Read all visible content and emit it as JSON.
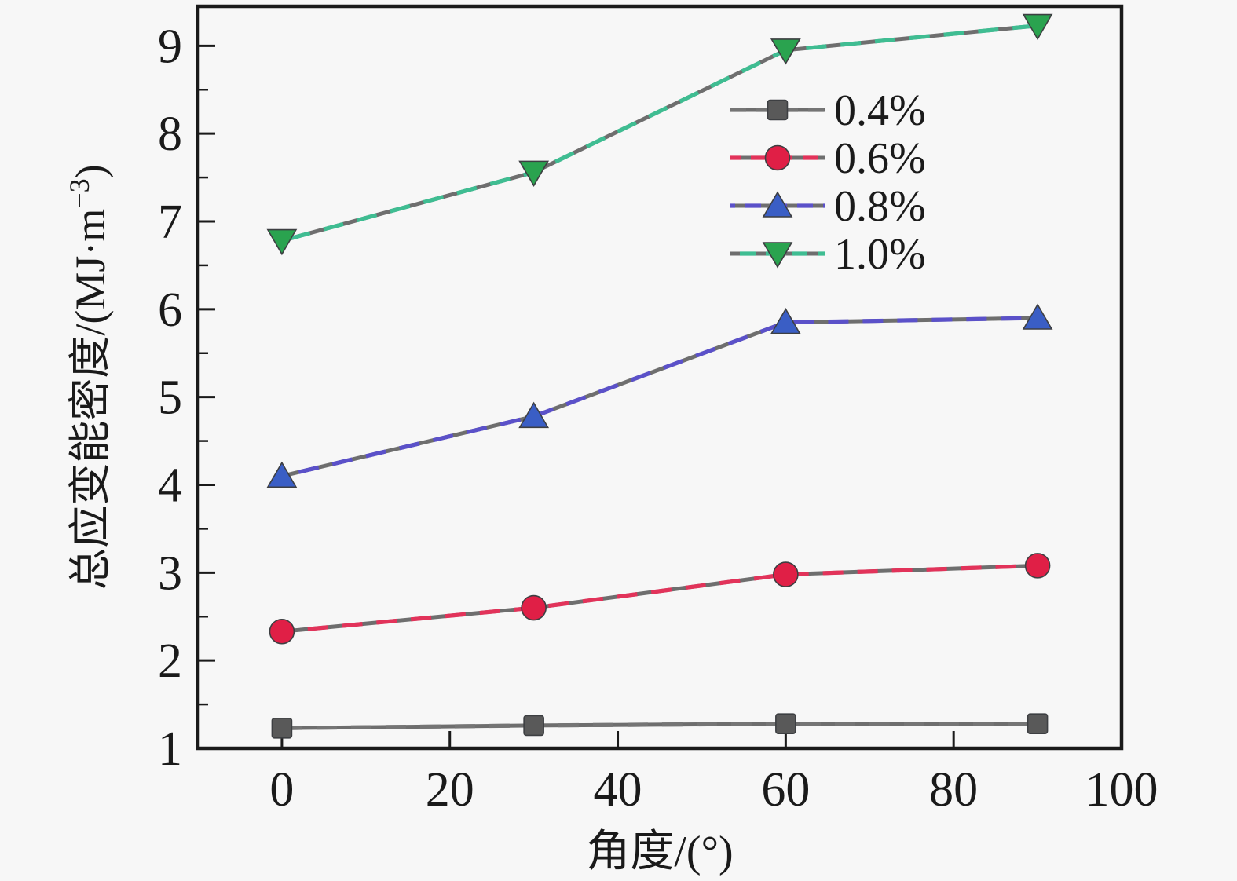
{
  "figure": {
    "background": "#f7f7f7",
    "axis_color": "#1a1a1a",
    "line_shadow_color": "#6e6e6e"
  },
  "chart_data": {
    "type": "line",
    "title": "",
    "xlabel": "角度/(°)",
    "ylabel_prefix": "总应变能密度/(MJ·m",
    "ylabel_sup": "−3",
    "ylabel_suffix": ")",
    "x": [
      0,
      30,
      60,
      90
    ],
    "series": [
      {
        "name": "0.4%",
        "values": [
          1.23,
          1.26,
          1.28,
          1.28
        ],
        "line_color": "#757575",
        "marker_color": "#595959",
        "marker": "square"
      },
      {
        "name": "0.6%",
        "values": [
          2.33,
          2.6,
          2.98,
          3.08
        ],
        "line_color": "#e2335a",
        "marker_color": "#e01f46",
        "marker": "circle"
      },
      {
        "name": "0.8%",
        "values": [
          4.1,
          4.78,
          5.85,
          5.9
        ],
        "line_color": "#5b51c9",
        "marker_color": "#3a5ec5",
        "marker": "triangle-up"
      },
      {
        "name": "1.0%",
        "values": [
          6.78,
          7.56,
          8.95,
          9.23
        ],
        "line_color": "#3fbd92",
        "marker_color": "#2aa34f",
        "marker": "triangle-down"
      }
    ],
    "xlim": [
      -10,
      100
    ],
    "ylim": [
      1,
      9.45
    ],
    "x_ticks": [
      0,
      20,
      40,
      60,
      80,
      100
    ],
    "x_tick_labels": [
      "0",
      "20",
      "40",
      "60",
      "80",
      "100"
    ],
    "y_ticks": [
      1,
      2,
      3,
      4,
      5,
      6,
      7,
      8,
      9
    ],
    "y_tick_labels": [
      "1",
      "2",
      "3",
      "4",
      "5",
      "6",
      "7",
      "8",
      "9"
    ],
    "y_minor_step": 0.5,
    "grid": false,
    "legend_position": "upper-right-inside"
  }
}
